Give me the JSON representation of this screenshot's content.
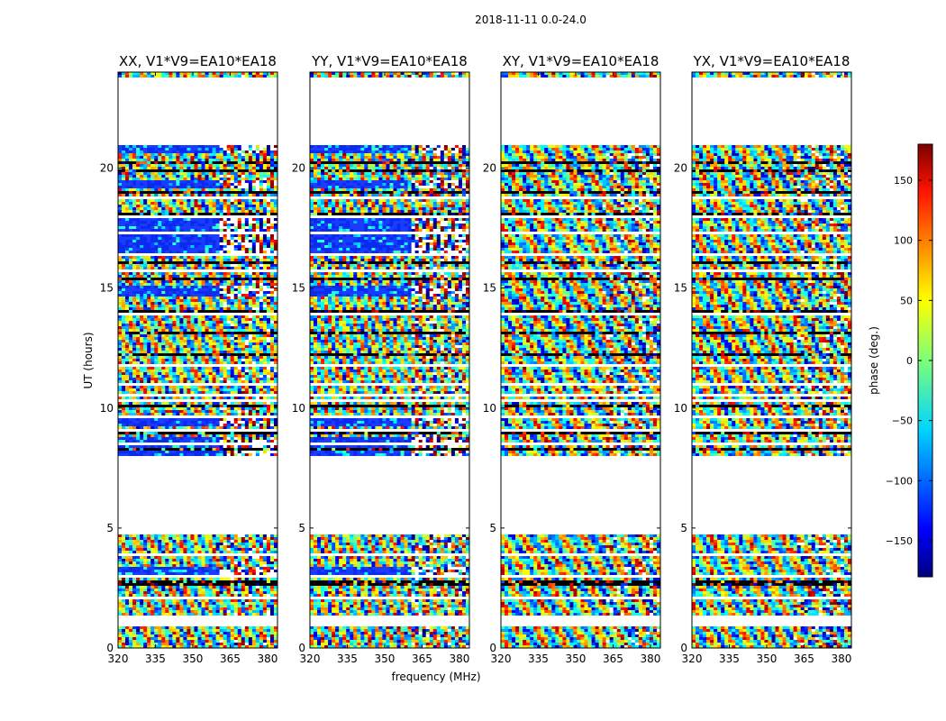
{
  "figure": {
    "suptitle": "2018-11-11 0.0-24.0"
  },
  "chart_data": {
    "type": "heatmap",
    "title": "2018-11-11 0.0-24.0",
    "xlabel": "frequency (MHz)",
    "ylabel": "UT (hours)",
    "xlim": [
      320,
      384
    ],
    "ylim": [
      0,
      24
    ],
    "xticks": [
      "320",
      "335",
      "350",
      "365",
      "380"
    ],
    "yticks": [
      "0",
      "5",
      "10",
      "15",
      "20"
    ],
    "panels": [
      {
        "name": "XX",
        "title": "XX, V1*V9=EA10*EA18"
      },
      {
        "name": "YY",
        "title": "YY, V1*V9=EA10*EA18"
      },
      {
        "name": "XY",
        "title": "XY, V1*V9=EA10*EA18"
      },
      {
        "name": "YX",
        "title": "YX, V1*V9=EA10*EA18"
      }
    ],
    "data_bands_hours": [
      [
        0.0,
        0.95
      ],
      [
        1.35,
        4.7
      ],
      [
        8.05,
        21.0
      ],
      [
        23.75,
        24.0
      ]
    ],
    "blue_bands_hours_XX_YY": [
      [
        3.05,
        3.4
      ],
      [
        8.05,
        8.8
      ],
      [
        9.2,
        9.55
      ],
      [
        14.7,
        15.05
      ],
      [
        16.5,
        17.9
      ],
      [
        19.2,
        19.45
      ],
      [
        20.6,
        20.95
      ]
    ],
    "colorbar": {
      "label": "phase (deg.)",
      "range": [
        -180,
        180
      ],
      "ticks": [
        "150",
        "100",
        "50",
        "0",
        "−50",
        "−100",
        "−150"
      ],
      "tick_values": [
        150,
        100,
        50,
        0,
        -50,
        -100,
        -150
      ]
    }
  }
}
